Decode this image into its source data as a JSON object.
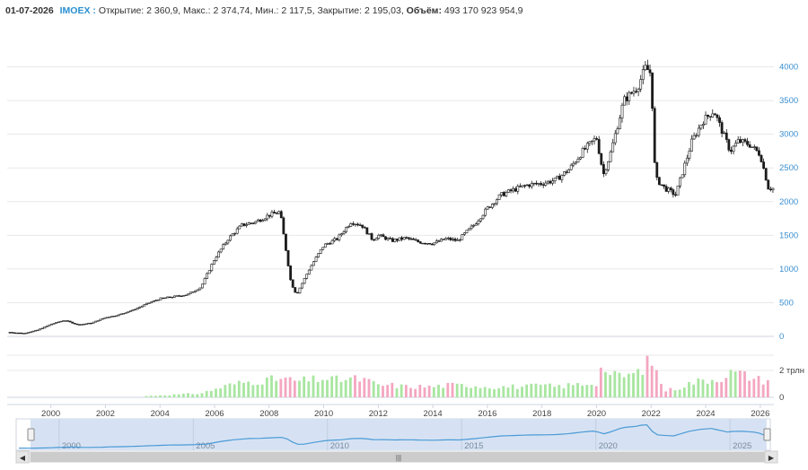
{
  "info": {
    "date": "01-07-2026",
    "ticker": "IMOEX :",
    "open_label": "Открытие:",
    "open": "2 360,9,",
    "high_label": "Макс.:",
    "high": "2 374,74,",
    "low_label": "Мин.:",
    "low": "2 117,5,",
    "close_label": "Закрытие:",
    "close": "2 195,03,",
    "volume_label": "Объём:",
    "volume": "493 170 923 954,9"
  },
  "colors": {
    "up_candle": "#ffffff",
    "down_candle": "#1a1a1a",
    "volume_up": "#a8e6a0",
    "volume_down": "#f4a6c0",
    "axis_text": "#3a8fd0",
    "navigator_line": "#4a9ad6",
    "navigator_fill": "#d6e2f3"
  },
  "navigator": {
    "year_labels": [
      "2000",
      "2005",
      "2010",
      "2015",
      "2020",
      "2025"
    ],
    "scroll_grip": "|||"
  },
  "chart_data": {
    "type": "candlestick",
    "title": "",
    "y_axis": {
      "ticks": [
        "0",
        "500",
        "1000",
        "1500",
        "2000",
        "2500",
        "3000",
        "3500",
        "4000"
      ],
      "ylim": [
        0,
        4500
      ]
    },
    "x_axis": {
      "ticks": [
        "2000",
        "2002",
        "2004",
        "2006",
        "2008",
        "2010",
        "2012",
        "2014",
        "2016",
        "2018",
        "2020",
        "2022",
        "2024",
        "2026"
      ],
      "xlim": [
        1998.4,
        2026.5
      ]
    },
    "volume_axis": {
      "ticks": [
        "0",
        "2 трлн"
      ],
      "ylim": [
        0,
        3
      ]
    },
    "price_series": {
      "name": "IMOEX",
      "x": [
        1998.5,
        1999.0,
        1999.5,
        2000.0,
        2000.5,
        2001.0,
        2001.5,
        2002.0,
        2002.5,
        2003.0,
        2003.5,
        2004.0,
        2004.5,
        2005.0,
        2005.5,
        2006.0,
        2006.5,
        2007.0,
        2007.5,
        2008.0,
        2008.4,
        2008.8,
        2009.0,
        2009.5,
        2010.0,
        2010.5,
        2011.0,
        2011.4,
        2011.8,
        2012.0,
        2012.5,
        2013.0,
        2013.5,
        2014.0,
        2014.5,
        2014.9,
        2015.5,
        2016.0,
        2016.5,
        2017.0,
        2017.5,
        2018.0,
        2018.5,
        2019.0,
        2019.5,
        2020.0,
        2020.25,
        2020.5,
        2021.0,
        2021.5,
        2021.8,
        2022.0,
        2022.15,
        2022.5,
        2022.9,
        2023.5,
        2023.9,
        2024.3,
        2024.6,
        2024.9,
        2025.2,
        2025.6,
        2026.0,
        2026.3,
        2026.5
      ],
      "y": [
        60,
        45,
        90,
        180,
        240,
        170,
        200,
        280,
        320,
        390,
        480,
        560,
        590,
        620,
        730,
        1150,
        1450,
        1650,
        1700,
        1800,
        1850,
        800,
        620,
        1020,
        1350,
        1450,
        1700,
        1650,
        1430,
        1500,
        1420,
        1460,
        1400,
        1380,
        1450,
        1420,
        1650,
        1900,
        2100,
        2180,
        2250,
        2270,
        2320,
        2480,
        2750,
        2950,
        2400,
        2700,
        3500,
        3700,
        3990,
        3900,
        2350,
        2200,
        2100,
        2900,
        3200,
        3350,
        3050,
        2750,
        2900,
        2850,
        2700,
        2200,
        2195
      ]
    },
    "volume_series": {
      "name": "Объём",
      "x": [
        2003.5,
        2004.5,
        2005.5,
        2006.0,
        2006.5,
        2007.0,
        2007.5,
        2008.0,
        2008.5,
        2009.0,
        2009.5,
        2010.0,
        2010.5,
        2011.0,
        2011.5,
        2012.0,
        2012.5,
        2013.0,
        2013.5,
        2014.0,
        2014.5,
        2015.0,
        2015.5,
        2016.0,
        2016.5,
        2017.0,
        2017.5,
        2018.0,
        2018.5,
        2019.0,
        2019.5,
        2020.0,
        2020.25,
        2020.5,
        2021.0,
        2021.5,
        2022.0,
        2022.5,
        2023.0,
        2023.5,
        2024.0,
        2024.5,
        2025.0,
        2025.5,
        2026.0,
        2026.4
      ],
      "y": [
        0.1,
        0.2,
        0.3,
        0.6,
        0.9,
        1.1,
        1.2,
        1.3,
        1.4,
        1.2,
        1.3,
        1.4,
        1.3,
        1.4,
        1.3,
        0.9,
        0.9,
        0.8,
        0.8,
        0.8,
        0.9,
        0.9,
        0.9,
        0.8,
        0.8,
        0.8,
        0.8,
        0.9,
        0.8,
        0.9,
        1.0,
        1.1,
        2.6,
        1.6,
        1.6,
        1.8,
        2.8,
        0.5,
        0.7,
        1.1,
        1.3,
        1.4,
        1.9,
        1.6,
        1.3,
        1.2
      ]
    },
    "grid": true,
    "legend": "none"
  }
}
